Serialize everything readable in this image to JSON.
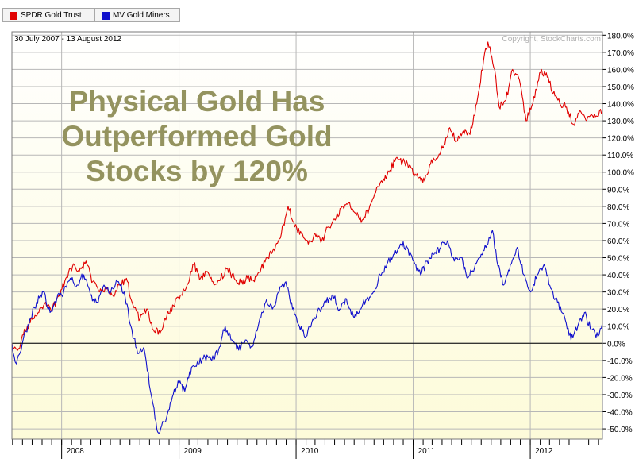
{
  "legend": [
    {
      "label": "SPDR Gold Trust",
      "color": "#e00000"
    },
    {
      "label": "MV Gold Miners",
      "color": "#1010cc"
    }
  ],
  "header": {
    "date_range": "30 July 2007 - 13 August 2012",
    "copyright": "Copyright, StockCharts.com"
  },
  "chart_data": {
    "type": "line",
    "annotation": [
      "Physical Gold Has",
      "Outperformed Gold",
      "Stocks by 120%"
    ],
    "x_tick_labels": [
      "2008",
      "2009",
      "2010",
      "2011",
      "2012"
    ],
    "x_range": [
      "2007-07-30",
      "2012-08-13"
    ],
    "y_range": [
      -56,
      182
    ],
    "y_tick_labels": [
      "180.0%",
      "170.0%",
      "160.0%",
      "150.0%",
      "140.0%",
      "130.0%",
      "120.0%",
      "110.0%",
      "100.0%",
      "90.0%",
      "80.0%",
      "70.0%",
      "60.0%",
      "50.0%",
      "40.0%",
      "30.0%",
      "20.0%",
      "10.0%",
      "0.0%",
      "-10.0%",
      "-20.0%",
      "-30.0%",
      "-40.0%",
      "-50.0%"
    ],
    "y_ticks": [
      180,
      170,
      160,
      150,
      140,
      130,
      120,
      110,
      100,
      90,
      80,
      70,
      60,
      50,
      40,
      30,
      20,
      10,
      0,
      -10,
      -20,
      -30,
      -40,
      -50
    ],
    "baseline": 0,
    "grid": true,
    "series": [
      {
        "name": "SPDR Gold Trust",
        "color": "#e00000",
        "points": [
          [
            "2007-07-30",
            0
          ],
          [
            "2007-08-20",
            -3
          ],
          [
            "2007-09-10",
            8
          ],
          [
            "2007-10-01",
            14
          ],
          [
            "2007-10-22",
            18
          ],
          [
            "2007-11-12",
            24
          ],
          [
            "2007-12-03",
            20
          ],
          [
            "2007-12-24",
            28
          ],
          [
            "2008-01-14",
            38
          ],
          [
            "2008-02-04",
            45
          ],
          [
            "2008-02-25",
            42
          ],
          [
            "2008-03-17",
            48
          ],
          [
            "2008-04-07",
            36
          ],
          [
            "2008-04-28",
            30
          ],
          [
            "2008-05-19",
            32
          ],
          [
            "2008-06-09",
            28
          ],
          [
            "2008-06-30",
            34
          ],
          [
            "2008-07-21",
            38
          ],
          [
            "2008-08-11",
            22
          ],
          [
            "2008-09-01",
            14
          ],
          [
            "2008-09-22",
            20
          ],
          [
            "2008-10-13",
            8
          ],
          [
            "2008-11-03",
            6
          ],
          [
            "2008-11-24",
            16
          ],
          [
            "2008-12-15",
            22
          ],
          [
            "2009-01-05",
            28
          ],
          [
            "2009-01-26",
            34
          ],
          [
            "2009-02-16",
            46
          ],
          [
            "2009-03-09",
            38
          ],
          [
            "2009-03-30",
            42
          ],
          [
            "2009-04-20",
            34
          ],
          [
            "2009-05-11",
            38
          ],
          [
            "2009-06-01",
            44
          ],
          [
            "2009-06-22",
            38
          ],
          [
            "2009-07-13",
            35
          ],
          [
            "2009-08-03",
            38
          ],
          [
            "2009-08-24",
            36
          ],
          [
            "2009-09-14",
            44
          ],
          [
            "2009-10-05",
            50
          ],
          [
            "2009-10-26",
            54
          ],
          [
            "2009-11-16",
            64
          ],
          [
            "2009-12-07",
            80
          ],
          [
            "2009-12-28",
            68
          ],
          [
            "2010-01-18",
            64
          ],
          [
            "2010-02-08",
            58
          ],
          [
            "2010-03-01",
            64
          ],
          [
            "2010-03-22",
            60
          ],
          [
            "2010-04-12",
            68
          ],
          [
            "2010-05-03",
            72
          ],
          [
            "2010-05-24",
            80
          ],
          [
            "2010-06-14",
            82
          ],
          [
            "2010-07-05",
            76
          ],
          [
            "2010-07-26",
            72
          ],
          [
            "2010-08-16",
            78
          ],
          [
            "2010-09-06",
            88
          ],
          [
            "2010-09-27",
            94
          ],
          [
            "2010-10-18",
            100
          ],
          [
            "2010-11-08",
            108
          ],
          [
            "2010-11-29",
            106
          ],
          [
            "2010-12-20",
            104
          ],
          [
            "2011-01-10",
            98
          ],
          [
            "2011-01-31",
            94
          ],
          [
            "2011-02-21",
            104
          ],
          [
            "2011-03-14",
            108
          ],
          [
            "2011-04-04",
            114
          ],
          [
            "2011-04-25",
            126
          ],
          [
            "2011-05-16",
            118
          ],
          [
            "2011-06-06",
            124
          ],
          [
            "2011-06-27",
            122
          ],
          [
            "2011-07-18",
            140
          ],
          [
            "2011-08-08",
            165
          ],
          [
            "2011-08-22",
            176
          ],
          [
            "2011-09-12",
            160
          ],
          [
            "2011-09-26",
            138
          ],
          [
            "2011-10-17",
            142
          ],
          [
            "2011-11-07",
            160
          ],
          [
            "2011-11-28",
            154
          ],
          [
            "2011-12-19",
            130
          ],
          [
            "2012-01-09",
            140
          ],
          [
            "2012-01-30",
            158
          ],
          [
            "2012-02-20",
            158
          ],
          [
            "2012-03-12",
            146
          ],
          [
            "2012-04-02",
            140
          ],
          [
            "2012-04-23",
            138
          ],
          [
            "2012-05-14",
            128
          ],
          [
            "2012-06-04",
            136
          ],
          [
            "2012-06-25",
            130
          ],
          [
            "2012-07-16",
            132
          ],
          [
            "2012-08-13",
            136
          ]
        ]
      },
      {
        "name": "MV Gold Miners",
        "color": "#1010cc",
        "points": [
          [
            "2007-07-30",
            0
          ],
          [
            "2007-08-13",
            -12
          ],
          [
            "2007-09-03",
            2
          ],
          [
            "2007-09-24",
            14
          ],
          [
            "2007-10-15",
            24
          ],
          [
            "2007-11-05",
            30
          ],
          [
            "2007-11-26",
            18
          ],
          [
            "2007-12-17",
            26
          ],
          [
            "2008-01-07",
            30
          ],
          [
            "2008-01-28",
            38
          ],
          [
            "2008-02-18",
            34
          ],
          [
            "2008-03-10",
            40
          ],
          [
            "2008-03-31",
            28
          ],
          [
            "2008-04-21",
            24
          ],
          [
            "2008-05-12",
            34
          ],
          [
            "2008-06-02",
            30
          ],
          [
            "2008-06-23",
            36
          ],
          [
            "2008-07-14",
            30
          ],
          [
            "2008-08-04",
            10
          ],
          [
            "2008-08-25",
            -6
          ],
          [
            "2008-09-15",
            -4
          ],
          [
            "2008-10-06",
            -30
          ],
          [
            "2008-10-27",
            -52
          ],
          [
            "2008-11-17",
            -46
          ],
          [
            "2008-12-08",
            -34
          ],
          [
            "2008-12-29",
            -22
          ],
          [
            "2009-01-19",
            -28
          ],
          [
            "2009-02-09",
            -14
          ],
          [
            "2009-03-02",
            -12
          ],
          [
            "2009-03-23",
            -8
          ],
          [
            "2009-04-13",
            -10
          ],
          [
            "2009-05-04",
            -4
          ],
          [
            "2009-05-25",
            10
          ],
          [
            "2009-06-15",
            2
          ],
          [
            "2009-07-06",
            -4
          ],
          [
            "2009-07-27",
            2
          ],
          [
            "2009-08-17",
            -2
          ],
          [
            "2009-09-07",
            12
          ],
          [
            "2009-09-28",
            24
          ],
          [
            "2009-10-19",
            20
          ],
          [
            "2009-11-09",
            30
          ],
          [
            "2009-11-30",
            36
          ],
          [
            "2009-12-21",
            20
          ],
          [
            "2010-01-11",
            10
          ],
          [
            "2010-02-01",
            4
          ],
          [
            "2010-02-22",
            14
          ],
          [
            "2010-03-15",
            20
          ],
          [
            "2010-04-05",
            24
          ],
          [
            "2010-04-26",
            28
          ],
          [
            "2010-05-17",
            20
          ],
          [
            "2010-06-07",
            26
          ],
          [
            "2010-06-28",
            16
          ],
          [
            "2010-07-19",
            20
          ],
          [
            "2010-08-09",
            26
          ],
          [
            "2010-08-30",
            30
          ],
          [
            "2010-09-20",
            40
          ],
          [
            "2010-10-11",
            46
          ],
          [
            "2010-11-01",
            52
          ],
          [
            "2010-11-22",
            58
          ],
          [
            "2010-12-13",
            56
          ],
          [
            "2011-01-03",
            48
          ],
          [
            "2011-01-24",
            40
          ],
          [
            "2011-02-14",
            48
          ],
          [
            "2011-03-07",
            52
          ],
          [
            "2011-03-28",
            56
          ],
          [
            "2011-04-18",
            60
          ],
          [
            "2011-05-09",
            48
          ],
          [
            "2011-05-30",
            50
          ],
          [
            "2011-06-20",
            38
          ],
          [
            "2011-07-11",
            44
          ],
          [
            "2011-08-01",
            52
          ],
          [
            "2011-08-22",
            58
          ],
          [
            "2011-09-05",
            66
          ],
          [
            "2011-09-19",
            48
          ],
          [
            "2011-10-10",
            34
          ],
          [
            "2011-10-31",
            46
          ],
          [
            "2011-11-21",
            56
          ],
          [
            "2011-12-12",
            40
          ],
          [
            "2012-01-02",
            30
          ],
          [
            "2012-01-23",
            40
          ],
          [
            "2012-02-13",
            46
          ],
          [
            "2012-03-05",
            32
          ],
          [
            "2012-03-26",
            24
          ],
          [
            "2012-04-16",
            16
          ],
          [
            "2012-05-07",
            2
          ],
          [
            "2012-05-28",
            10
          ],
          [
            "2012-06-18",
            18
          ],
          [
            "2012-07-09",
            8
          ],
          [
            "2012-07-30",
            4
          ],
          [
            "2012-08-13",
            12
          ]
        ]
      }
    ]
  }
}
